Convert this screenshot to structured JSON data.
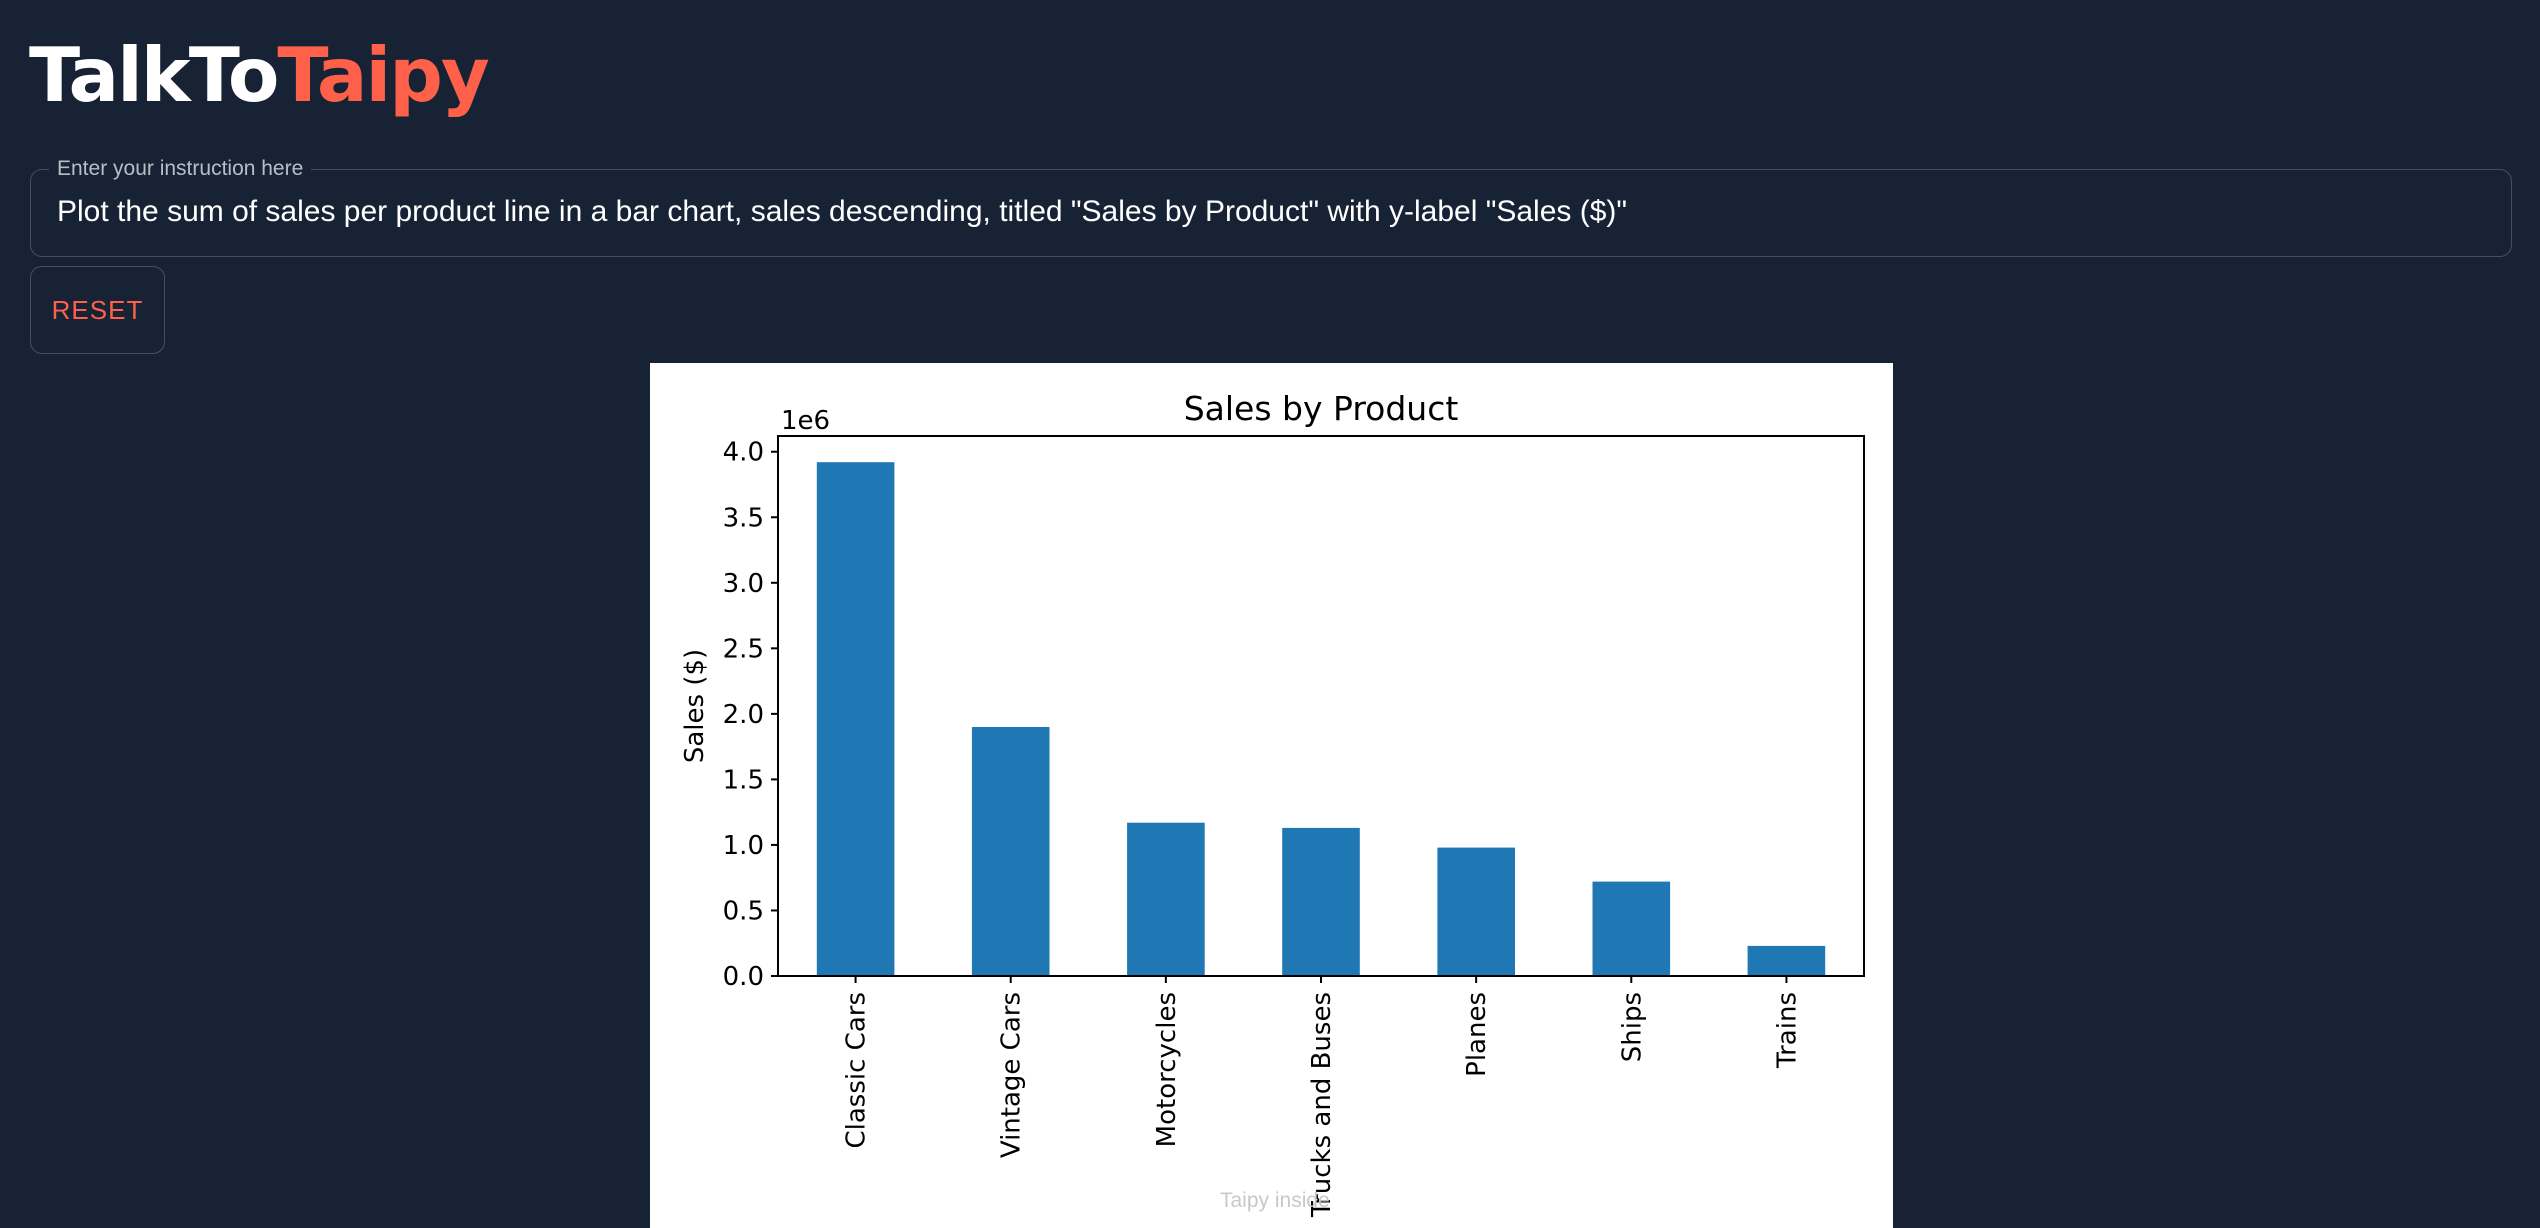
{
  "app": {
    "title_main": "TalkTo",
    "title_accent": "Taipy"
  },
  "instruction": {
    "label": "Enter your instruction here",
    "value": "Plot the sum of sales per product line in a bar chart, sales descending, titled \"Sales by Product\" with y-label \"Sales ($)\""
  },
  "buttons": {
    "reset_label": "RESET"
  },
  "footer": {
    "note": "Taipy inside"
  },
  "colors": {
    "background": "#172335",
    "accent": "#ff6049",
    "bar": "#1f77b4"
  },
  "chart_data": {
    "type": "bar",
    "title": "Sales by Product",
    "xlabel": "",
    "ylabel": "Sales ($)",
    "y_offset_label": "1e6",
    "categories": [
      "Classic Cars",
      "Vintage Cars",
      "Motorcycles",
      "Trucks and Buses",
      "Planes",
      "Ships",
      "Trains"
    ],
    "values": [
      3.92,
      1.9,
      1.17,
      1.13,
      0.98,
      0.72,
      0.23
    ],
    "ylim": [
      0,
      4.12
    ],
    "yticks": [
      0.0,
      0.5,
      1.0,
      1.5,
      2.0,
      2.5,
      3.0,
      3.5,
      4.0
    ],
    "ytick_labels": [
      "0.0",
      "0.5",
      "1.0",
      "1.5",
      "2.0",
      "2.5",
      "3.0",
      "3.5",
      "4.0"
    ],
    "grid": false,
    "legend": "none"
  }
}
